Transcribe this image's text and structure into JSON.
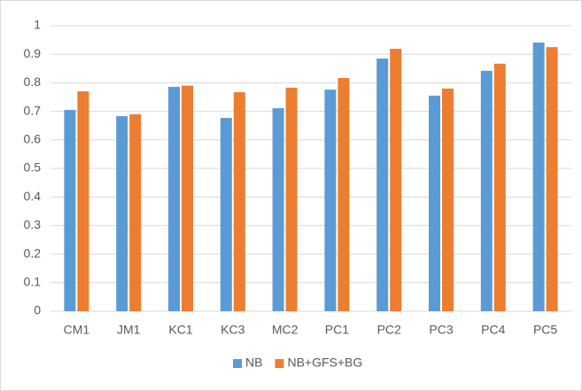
{
  "chart_data": {
    "type": "bar",
    "categories": [
      "CM1",
      "JM1",
      "KC1",
      "KC3",
      "MC2",
      "PC1",
      "PC2",
      "PC3",
      "PC4",
      "PC5"
    ],
    "series": [
      {
        "name": "NB",
        "color": "#5b9bd5",
        "values": [
          0.705,
          0.683,
          0.786,
          0.677,
          0.711,
          0.776,
          0.885,
          0.755,
          0.842,
          0.941
        ]
      },
      {
        "name": "NB+GFS+BG",
        "color": "#ed7d31",
        "values": [
          0.77,
          0.69,
          0.79,
          0.767,
          0.783,
          0.817,
          0.919,
          0.78,
          0.867,
          0.925
        ]
      }
    ],
    "ylim": [
      0,
      1
    ],
    "yticks": [
      0,
      0.1,
      0.2,
      0.3,
      0.4,
      0.5,
      0.6,
      0.7,
      0.8,
      0.9,
      1
    ],
    "grid": true,
    "legend": "bottom"
  }
}
